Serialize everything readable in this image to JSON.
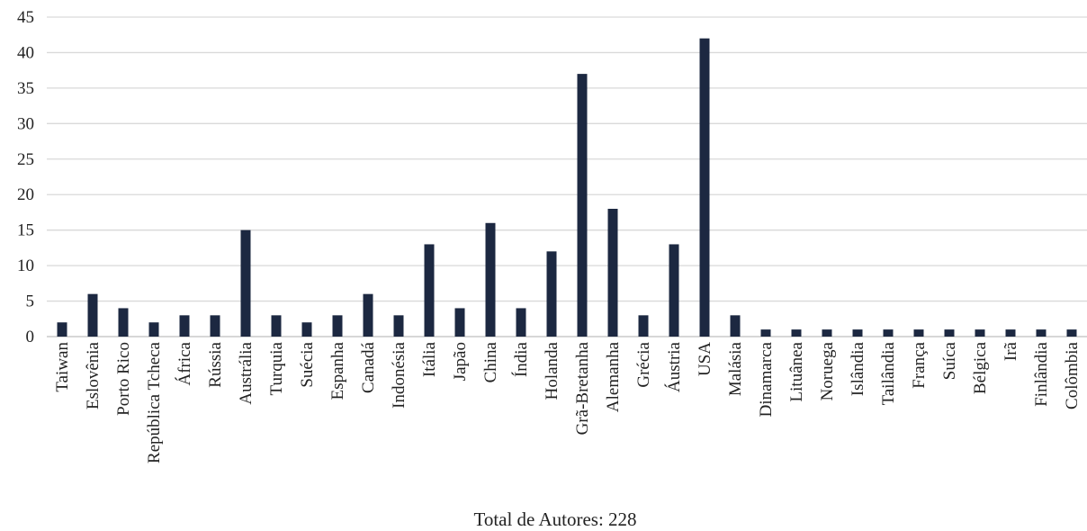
{
  "chart_data": {
    "type": "bar",
    "categories": [
      "Taiwan",
      "Eslovênia",
      "Porto Rico",
      "República Tcheca",
      "África",
      "Rússia",
      "Austrália",
      "Turquia",
      "Suécia",
      "Espanha",
      "Canadá",
      "Indonésia",
      "Itália",
      "Japão",
      "China",
      "Índia",
      "Holanda",
      "Grã-Bretanha",
      "Alemanha",
      "Grécia",
      "Áustria",
      "USA",
      "Malásia",
      "Dinamarca",
      "Lituânea",
      "Noruega",
      "Islândia",
      "Tailândia",
      "França",
      "Suíca",
      "Bélgica",
      "Irã",
      "Finlândia",
      "Colômbia"
    ],
    "values": [
      2,
      6,
      4,
      2,
      3,
      3,
      15,
      3,
      2,
      3,
      6,
      3,
      13,
      4,
      16,
      4,
      12,
      37,
      18,
      3,
      13,
      42,
      3,
      1,
      1,
      1,
      1,
      1,
      1,
      1,
      1,
      1,
      1,
      1
    ],
    "xlabel": "Total de Autores: 228",
    "ylabel": "",
    "ylim": [
      0,
      45
    ],
    "yticks": [
      0,
      5,
      10,
      15,
      20,
      25,
      30,
      35,
      40,
      45
    ],
    "grid": true,
    "bar_color": "#1c2841"
  }
}
